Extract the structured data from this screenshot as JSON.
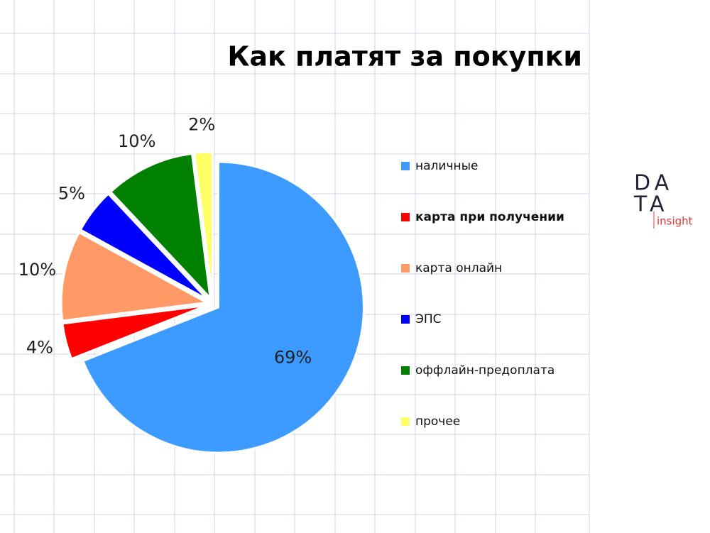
{
  "chart_data": {
    "type": "pie",
    "title": "Как платят за покупки",
    "categories": [
      "наличные",
      "карта при получении",
      "карта онлайн",
      "ЭПС",
      "оффлайн-предоплата",
      "прочее"
    ],
    "values": [
      69,
      4,
      10,
      5,
      10,
      2
    ],
    "value_labels": [
      "69%",
      "4%",
      "10%",
      "5%",
      "10%",
      "2%"
    ],
    "colors": [
      "#3d9bff",
      "#ff0000",
      "#ff9a66",
      "#0000ff",
      "#008000",
      "#ffff66"
    ],
    "legend": "right"
  },
  "logo": {
    "line1": "DA",
    "line2": "TA",
    "sub": "insight"
  }
}
